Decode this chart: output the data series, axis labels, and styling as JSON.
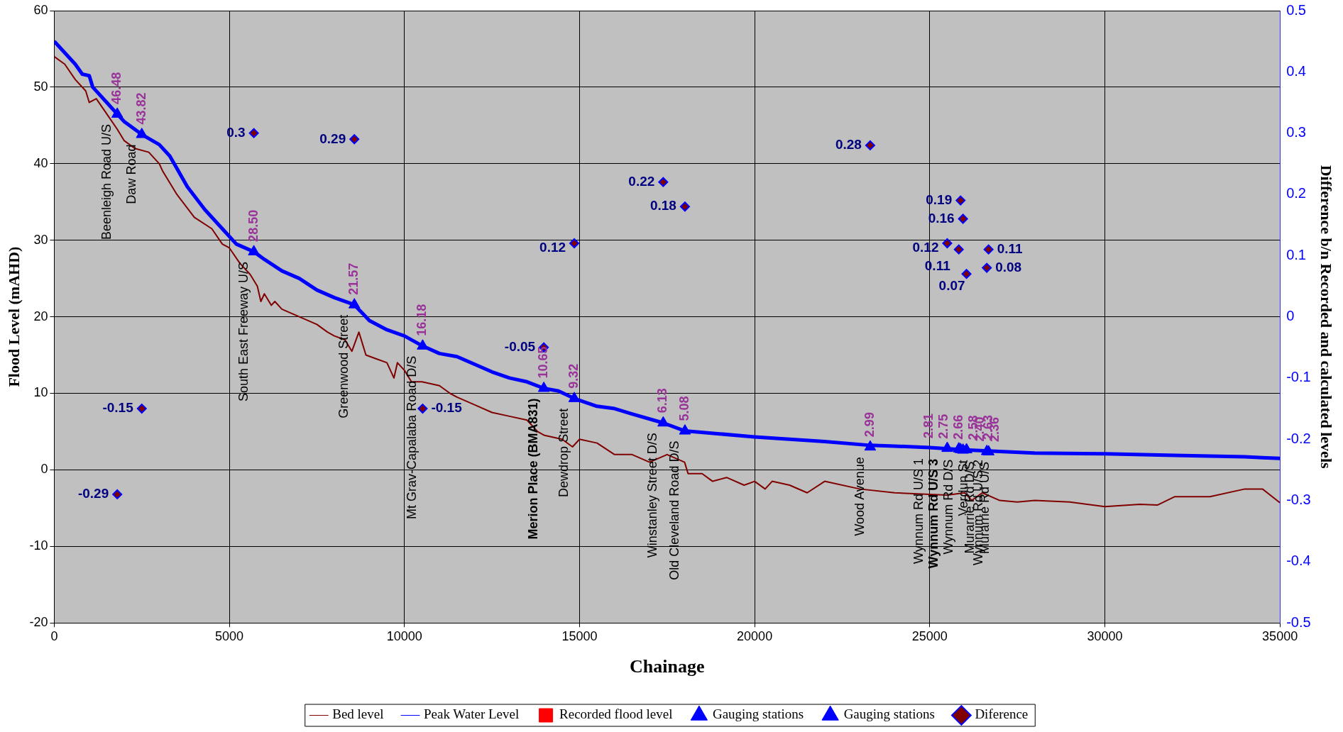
{
  "chart_data": {
    "type": "line",
    "xlabel": "Chainage",
    "ylabel": "Flood Level (mAHD)",
    "y2label": "Difference b/n Recorded and calculated levels",
    "xlim": [
      0,
      35000
    ],
    "xticks": [
      0,
      5000,
      10000,
      15000,
      20000,
      25000,
      30000,
      35000
    ],
    "ylim": [
      -20,
      60
    ],
    "yticks": [
      -20,
      -10,
      0,
      10,
      20,
      30,
      40,
      50,
      60
    ],
    "y2lim": [
      -0.5,
      0.5
    ],
    "y2ticks": [
      -0.5,
      -0.4,
      -0.3,
      -0.2,
      -0.1,
      0,
      0.1,
      0.2,
      0.3,
      0.4,
      0.5
    ],
    "grid": true,
    "legend": "bottom",
    "series": [
      {
        "name": "Bed level",
        "type": "line",
        "color": "#800000",
        "marker": "none",
        "x": [
          0,
          300,
          600,
          900,
          1000,
          1200,
          1500,
          1800,
          2000,
          2300,
          2700,
          3000,
          3100,
          3500,
          4000,
          4500,
          4800,
          5000,
          5300,
          5600,
          5800,
          5900,
          6000,
          6200,
          6300,
          6500,
          7000,
          7500,
          7800,
          8000,
          8300,
          8500,
          8700,
          8900,
          9200,
          9500,
          9700,
          9800,
          10000,
          10200,
          10500,
          11000,
          11300,
          11500,
          12000,
          12500,
          13000,
          13500,
          13800,
          14000,
          14500,
          14800,
          15000,
          15500,
          16000,
          16500,
          17000,
          17500,
          18000,
          18100,
          18500,
          18800,
          19200,
          19700,
          20000,
          20300,
          20500,
          21000,
          21500,
          22000,
          23000,
          24000,
          25000,
          25500,
          26000,
          26200,
          26500,
          27000,
          27500,
          28000,
          29000,
          30000,
          31000,
          31500,
          32000,
          33000,
          34000,
          34500,
          35000
        ],
        "values": [
          54,
          53,
          51,
          49.5,
          48,
          48.5,
          46.5,
          44.5,
          43,
          42,
          41.5,
          40,
          39,
          36,
          33,
          31.5,
          29.5,
          29,
          27,
          25.5,
          24,
          22,
          23,
          21.5,
          22,
          21,
          20,
          19,
          18,
          17.5,
          17,
          15.5,
          18,
          15,
          14.5,
          14,
          12,
          14,
          13,
          11.5,
          11.5,
          11,
          10,
          9.5,
          8.5,
          7.5,
          7,
          6.5,
          5,
          4.5,
          4,
          3,
          4,
          3.5,
          2,
          2,
          1,
          2,
          1,
          -0.5,
          -0.5,
          -1.5,
          -1,
          -2,
          -1.5,
          -2.5,
          -1.5,
          -2,
          -3,
          -1.5,
          -2.5,
          -3,
          -3.2,
          -3.3,
          -3,
          -4,
          -3,
          -4,
          -4.2,
          -4,
          -4.2,
          -4.8,
          -4.5,
          -4.6,
          -3.5,
          -3.5,
          -2.5,
          -2.5,
          -4.3
        ]
      },
      {
        "name": "Peak Water Level",
        "type": "line",
        "color": "#0000ff",
        "marker": "none",
        "x": [
          0,
          400,
          600,
          800,
          1000,
          1100,
          1500,
          1800,
          2000,
          2500,
          3000,
          3300,
          3800,
          4300,
          4800,
          5200,
          5700,
          6000,
          6500,
          7000,
          7500,
          8000,
          8570,
          9000,
          9500,
          10000,
          10520,
          11000,
          11500,
          12000,
          12500,
          13000,
          13500,
          13980,
          14400,
          14850,
          15500,
          16000,
          16500,
          17390,
          18010,
          19000,
          20000,
          21000,
          22000,
          23300,
          24000,
          25000,
          26000,
          27000,
          28000,
          30000,
          32000,
          34000,
          34500,
          35000
        ],
        "values": [
          56,
          54,
          53,
          51.7,
          51.5,
          50,
          48,
          46.48,
          45.5,
          43.82,
          42.5,
          41,
          37,
          34,
          31.5,
          29.5,
          28.5,
          27.5,
          26,
          25,
          23.5,
          22.5,
          21.57,
          19.5,
          18.3,
          17.5,
          16.18,
          15.2,
          14.8,
          13.8,
          12.8,
          12,
          11.5,
          10.65,
          10.3,
          9.32,
          8.3,
          8,
          7.3,
          6.13,
          5.08,
          4.7,
          4.3,
          4,
          3.7,
          3.2,
          3.1,
          2.9,
          2.6,
          2.4,
          2.2,
          2.1,
          1.9,
          1.7,
          1.6,
          1.5
        ]
      },
      {
        "name": "Recorded flood level",
        "type": "scatter",
        "color": "#ff0000",
        "marker": "square"
      },
      {
        "name": "Gauging stations",
        "type": "scatter",
        "color": "#0000ff",
        "marker": "triangle",
        "x": [
          1800,
          2500,
          5700,
          8570,
          10520,
          14850,
          17390,
          18010,
          23300,
          25500,
          25880,
          25950,
          26050,
          26630,
          26680
        ],
        "values": [
          46.48,
          43.82,
          28.5,
          21.57,
          16.18,
          9.32,
          6.13,
          5.08,
          2.99,
          2.81,
          2.66,
          2.58,
          2.63,
          2.4,
          2.36
        ],
        "value_labels": [
          "46.48",
          "43.82",
          "28.50",
          "21.57",
          "16.18",
          "9.32",
          "6.13",
          "5.08",
          "2.99",
          "2.81",
          "2.66",
          "2.58",
          "2.63",
          "2.40",
          "2.36"
        ]
      },
      {
        "name": "Gauging stations",
        "type": "scatter",
        "color": "#0000ff",
        "marker": "triangle",
        "x": [
          13980,
          25830
        ],
        "values": [
          10.65,
          2.75
        ],
        "value_labels": [
          "10.65",
          "2.75"
        ]
      },
      {
        "name": "Diference",
        "type": "scatter",
        "color": "#0000ff",
        "marker": "diamond",
        "axis": "y2",
        "x": [
          1800,
          2500,
          5700,
          8570,
          10520,
          13980,
          14850,
          17390,
          18010,
          23300,
          25500,
          25830,
          25880,
          25950,
          26050,
          26630,
          26680
        ],
        "values": [
          -0.29,
          -0.15,
          0.3,
          0.29,
          -0.15,
          -0.05,
          0.12,
          0.22,
          0.18,
          0.28,
          0.12,
          0.11,
          0.19,
          0.16,
          0.07,
          0.08,
          0.11
        ],
        "value_labels": [
          "-0.29",
          "-0.15",
          "0.3",
          "0.29",
          "-0.15",
          "-0.05",
          "0.12",
          "0.22",
          "0.18",
          "0.28",
          "0.12",
          "0.11",
          "0.19",
          "0.16",
          "0.07",
          "0.08",
          "0.11"
        ]
      }
    ],
    "annotations": [
      {
        "text": "Beenleigh Road U/S",
        "x": 1800,
        "y": 46.48
      },
      {
        "text": "Daw Road",
        "x": 2500,
        "y": 43.82
      },
      {
        "text": "South East Freeway U/S",
        "x": 5700,
        "y": 28.5
      },
      {
        "text": "Greenwood Street",
        "x": 8570,
        "y": 21.57
      },
      {
        "text": "Mt Grav-Capalaba Road D/S",
        "x": 10520,
        "y": 16.18
      },
      {
        "text": "Merion Place (BMA831)",
        "x": 13980,
        "y": 10.65
      },
      {
        "text": "Dewdrop Street",
        "x": 14850,
        "y": 9.32
      },
      {
        "text": "Winstanley Street D/S",
        "x": 17390,
        "y": 6.13
      },
      {
        "text": "Old Cleveland Road D/S",
        "x": 18010,
        "y": 5.08
      },
      {
        "text": "Wood Avenue",
        "x": 23300,
        "y": 2.99
      },
      {
        "text": "Wynnum Rd U/S 1",
        "x": 25500,
        "y": 2.81
      },
      {
        "text": "Wynnum Rd U/S 3",
        "x": 25830,
        "y": 2.75
      },
      {
        "text": "Wynnum Rd D/S",
        "x": 25880,
        "y": 2.66
      },
      {
        "text": "Verdun St",
        "x": 25950,
        "y": 2.58
      },
      {
        "text": "Wynnum Rd U/S 2",
        "x": 26050,
        "y": 2.63
      },
      {
        "text": "Murarrie Rd D/S",
        "x": 26630,
        "y": 2.4
      },
      {
        "text": "Murarrie Rd U/S",
        "x": 26680,
        "y": 2.36
      }
    ]
  }
}
